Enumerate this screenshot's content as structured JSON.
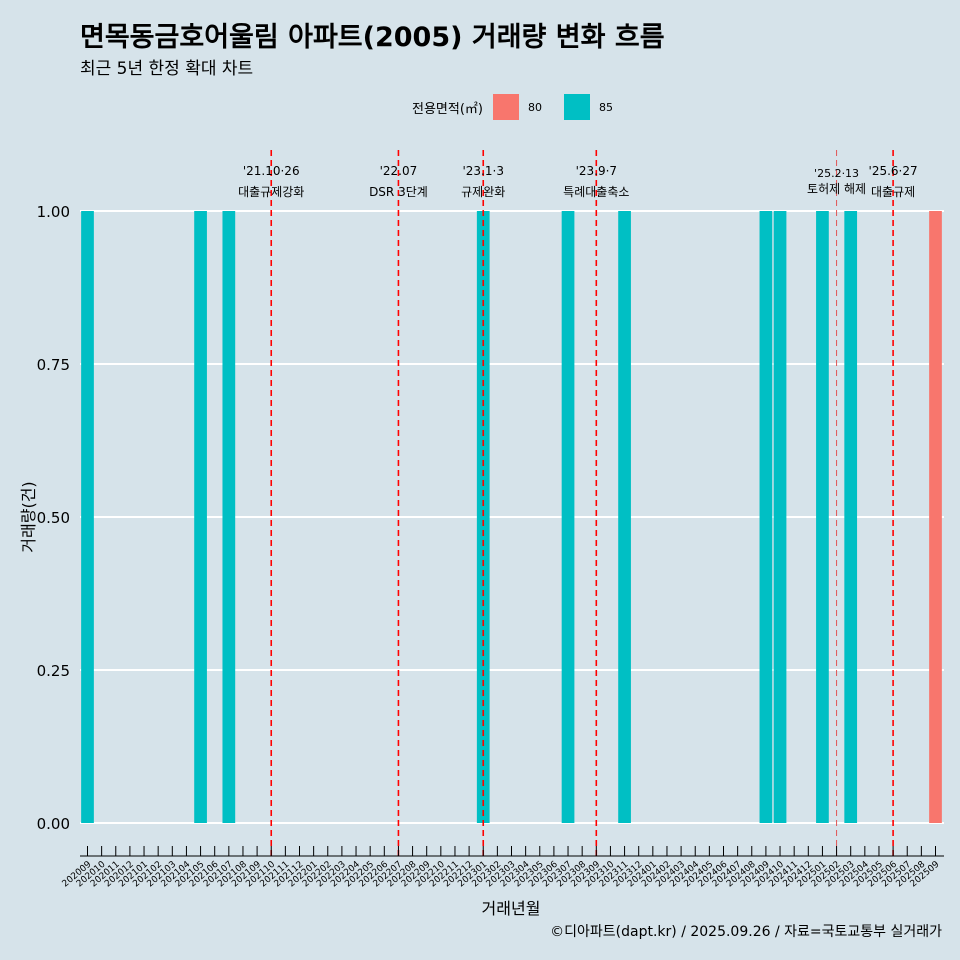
{
  "title": "면목동금호어울림 아파트(2005) 거래량 변화 흐름",
  "subtitle": "최근 5년 한정 확대 차트",
  "caption": "©디아파트(dapt.kr) / 2025.09.26 / 자료=국토교통부 실거래가",
  "legend": {
    "title": "전용면적(㎡)",
    "items": [
      {
        "label": "80",
        "color": "#f8766d"
      },
      {
        "label": "85",
        "color": "#00bfc4"
      }
    ]
  },
  "chart_data": {
    "type": "bar",
    "title": "면목동금호어울림 아파트(2005) 거래량 변화 흐름",
    "xlabel": "거래년월",
    "ylabel": "거래량(건)",
    "ylim": [
      0,
      1
    ],
    "yticks": [
      "0.00",
      "0.25",
      "0.50",
      "0.75",
      "1.00"
    ],
    "categories": [
      "202009",
      "202010",
      "202011",
      "202012",
      "202101",
      "202102",
      "202103",
      "202104",
      "202105",
      "202106",
      "202107",
      "202108",
      "202109",
      "202110",
      "202111",
      "202112",
      "202201",
      "202202",
      "202203",
      "202204",
      "202205",
      "202206",
      "202207",
      "202208",
      "202209",
      "202210",
      "202211",
      "202212",
      "202301",
      "202302",
      "202303",
      "202304",
      "202305",
      "202306",
      "202307",
      "202308",
      "202309",
      "202310",
      "202311",
      "202312",
      "202401",
      "202402",
      "202403",
      "202404",
      "202405",
      "202406",
      "202407",
      "202408",
      "202409",
      "202410",
      "202411",
      "202412",
      "202501",
      "202502",
      "202503",
      "202504",
      "202505",
      "202506",
      "202507",
      "202508",
      "202509"
    ],
    "series": [
      {
        "name": "80",
        "color": "#f8766d",
        "values": {
          "202509": 1
        }
      },
      {
        "name": "85",
        "color": "#00bfc4",
        "values": {
          "202009": 1,
          "202105": 1,
          "202107": 1,
          "202301": 1,
          "202307": 1,
          "202311": 1,
          "202409": 1,
          "202410": 1,
          "202501": 1,
          "202503": 1
        }
      }
    ],
    "events": [
      {
        "month": "202110",
        "date": "'21.10·26",
        "label": "대출규제강화",
        "style": "dashed"
      },
      {
        "month": "202207",
        "date": "'22.07",
        "label": "DSR 3단계",
        "style": "dashed"
      },
      {
        "month": "202301",
        "date": "'23.1·3",
        "label": "규제완화",
        "style": "dashed"
      },
      {
        "month": "202309",
        "date": "'23.9·7",
        "label": "특례대출축소",
        "style": "dashed"
      },
      {
        "month": "202502",
        "date": "'25.2·13",
        "label": "토허제 해제",
        "style": "thin"
      },
      {
        "month": "202506",
        "date": "'25.6·27",
        "label": "대출규제",
        "style": "dashed"
      }
    ],
    "grid": true,
    "legend_position": "top"
  }
}
